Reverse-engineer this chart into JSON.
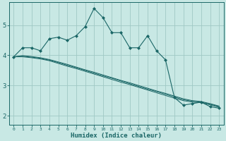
{
  "xlabel": "Humidex (Indice chaleur)",
  "background_color": "#c8e8e4",
  "grid_color": "#a0c8c4",
  "line_color": "#1a6666",
  "marker_color": "#1a6666",
  "xlim": [
    -0.5,
    23.5
  ],
  "ylim": [
    1.7,
    5.75
  ],
  "x_ticks": [
    0,
    1,
    2,
    3,
    4,
    5,
    6,
    7,
    8,
    9,
    10,
    11,
    12,
    13,
    14,
    15,
    16,
    17,
    18,
    19,
    20,
    21,
    22,
    23
  ],
  "y_ticks": [
    2,
    3,
    4,
    5
  ],
  "series": [
    [
      3.95,
      4.25,
      4.25,
      4.15,
      4.55,
      4.6,
      4.5,
      4.65,
      4.95,
      5.55,
      5.25,
      4.75,
      4.75,
      4.25,
      4.25,
      4.65,
      4.15,
      3.85,
      2.6,
      2.35,
      2.4,
      2.45,
      2.3,
      2.25
    ],
    [
      3.95,
      3.95,
      3.92,
      3.88,
      3.82,
      3.73,
      3.64,
      3.56,
      3.47,
      3.38,
      3.29,
      3.2,
      3.11,
      3.03,
      2.94,
      2.85,
      2.76,
      2.67,
      2.58,
      2.5,
      2.45,
      2.43,
      2.36,
      2.28
    ],
    [
      3.95,
      3.97,
      3.94,
      3.9,
      3.84,
      3.76,
      3.67,
      3.59,
      3.5,
      3.41,
      3.32,
      3.24,
      3.15,
      3.06,
      2.97,
      2.88,
      2.8,
      2.71,
      2.62,
      2.53,
      2.48,
      2.45,
      2.38,
      2.3
    ],
    [
      3.95,
      3.99,
      3.96,
      3.92,
      3.86,
      3.78,
      3.7,
      3.61,
      3.52,
      3.44,
      3.35,
      3.26,
      3.17,
      3.09,
      3.0,
      2.91,
      2.82,
      2.74,
      2.65,
      2.56,
      2.5,
      2.47,
      2.4,
      2.32
    ]
  ]
}
